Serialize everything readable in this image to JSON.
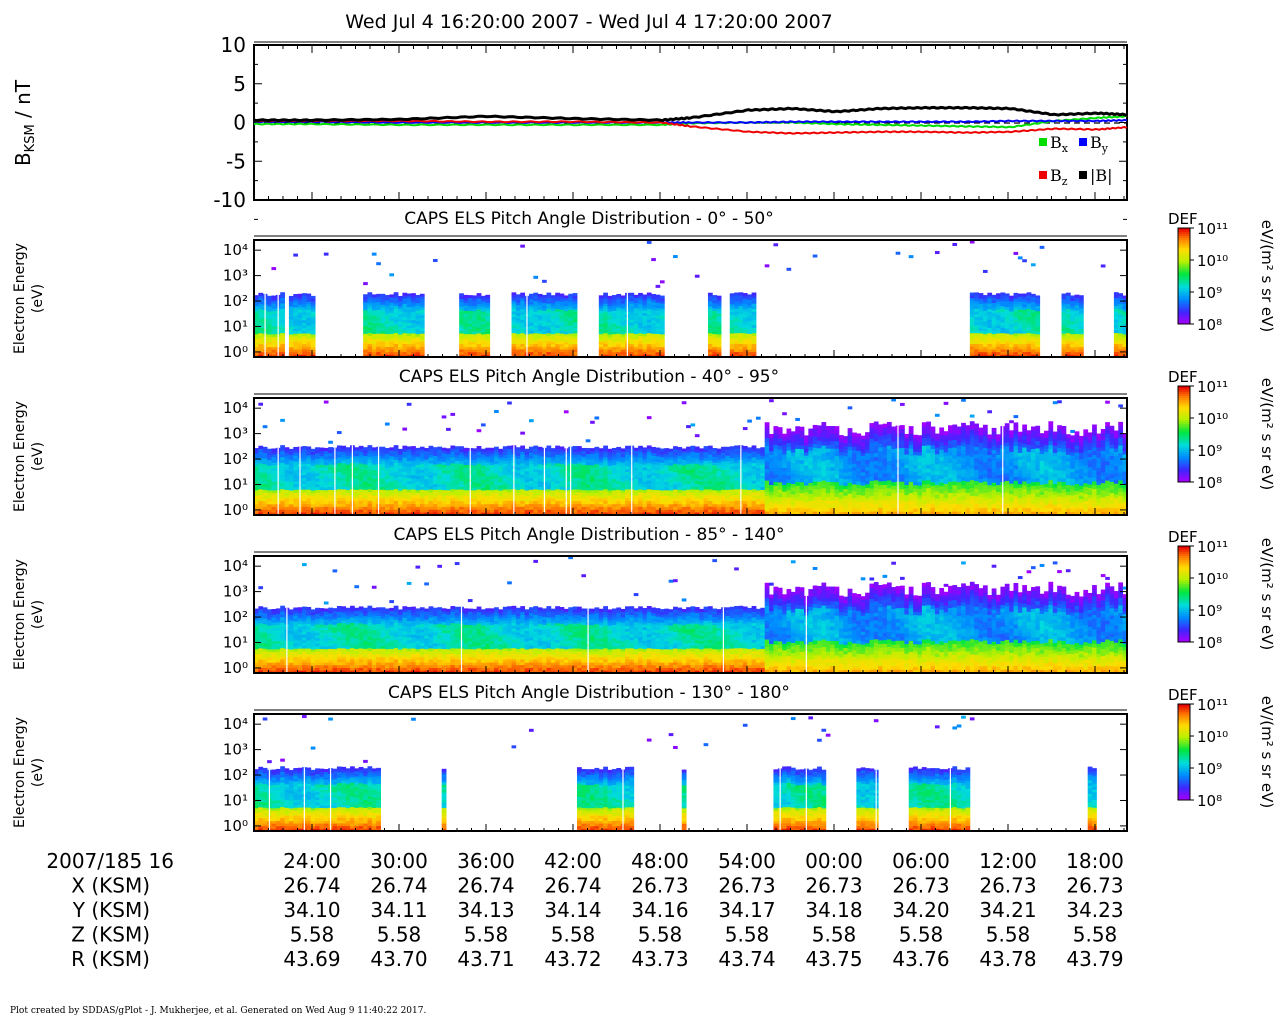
{
  "title": "Wed Jul 4 16:20:00 2007 - Wed Jul 4 17:20:00 2007",
  "footer": "Plot created by SDDAS/gPlot - J. Mukherjee, et al.  Generated on Wed Aug 9 11:40:22 2017.",
  "colors": {
    "bx": "#00dd00",
    "by": "#0000ff",
    "bz": "#ee0000",
    "btot": "#000000"
  },
  "mag_panel": {
    "ylabel_main": "B",
    "ylabel_sub": "KSM",
    "ylabel_unit": " / nT",
    "yticks": [
      "10",
      "5",
      "0",
      "-5",
      "-10"
    ],
    "legend": [
      {
        "label": "B",
        "sub": "x",
        "color": "#00dd00"
      },
      {
        "label": "B",
        "sub": "y",
        "color": "#0000ff"
      },
      {
        "label": "B",
        "sub": "z",
        "color": "#ee0000"
      },
      {
        "label": "|B|",
        "sub": "",
        "color": "#000000"
      }
    ]
  },
  "spec_panels": [
    {
      "title": "CAPS ELS Pitch Angle Distribution - 0° - 50°"
    },
    {
      "title": "CAPS ELS Pitch Angle Distribution - 40° - 95°"
    },
    {
      "title": "CAPS ELS Pitch Angle Distribution - 85° - 140°"
    },
    {
      "title": "CAPS ELS Pitch Angle Distribution - 130° - 180°"
    }
  ],
  "spec_ylabel": [
    "Electron Energy",
    "(eV)"
  ],
  "colorbar": {
    "label": "DEF",
    "unit": "eV/(m² s sr eV)",
    "ticks": [
      "10¹¹",
      "10¹⁰",
      "10⁹",
      "10⁸"
    ]
  },
  "energy_ticks": [
    "10⁴",
    "10³",
    "10²",
    "10¹",
    "10⁰"
  ],
  "ephemeris": {
    "start_label": "2007/185 16",
    "rows": [
      {
        "label": "X (KSM)",
        "values": [
          "26.74",
          "26.74",
          "26.74",
          "26.74",
          "26.73",
          "26.73",
          "26.73",
          "26.73",
          "26.73",
          "26.73"
        ]
      },
      {
        "label": "Y (KSM)",
        "values": [
          "34.10",
          "34.11",
          "34.13",
          "34.14",
          "34.16",
          "34.17",
          "34.18",
          "34.20",
          "34.21",
          "34.23"
        ]
      },
      {
        "label": "Z (KSM)",
        "values": [
          "5.58",
          "5.58",
          "5.58",
          "5.58",
          "5.58",
          "5.58",
          "5.58",
          "5.58",
          "5.58",
          "5.58"
        ]
      },
      {
        "label": "R (KSM)",
        "values": [
          "43.69",
          "43.70",
          "43.71",
          "43.72",
          "43.73",
          "43.74",
          "43.75",
          "43.76",
          "43.78",
          "43.79"
        ]
      }
    ]
  },
  "chart_data": {
    "type": "line",
    "title": "Wed Jul 4 16:20:00 2007 - Wed Jul 4 17:20:00 2007",
    "x_time_labels": [
      "24:00",
      "30:00",
      "36:00",
      "42:00",
      "48:00",
      "54:00",
      "00:00",
      "06:00",
      "12:00",
      "18:00"
    ],
    "ylabel": "BKSM / nT",
    "ylim": [
      -10,
      10
    ],
    "x": [
      "16:20",
      "16:24",
      "16:30",
      "16:36",
      "16:42",
      "16:48",
      "16:50",
      "16:54",
      "16:57",
      "17:00",
      "17:03",
      "17:06",
      "17:09",
      "17:12",
      "17:15",
      "17:18",
      "17:20"
    ],
    "series": [
      {
        "name": "Bx",
        "values": [
          -0.2,
          -0.2,
          -0.3,
          -0.3,
          -0.3,
          -0.3,
          -0.1,
          0.0,
          0.0,
          -0.2,
          -0.3,
          -0.4,
          -0.5,
          -0.6,
          0.2,
          0.6,
          0.8
        ]
      },
      {
        "name": "By",
        "values": [
          0.1,
          0.1,
          0.0,
          0.0,
          0.0,
          0.0,
          0.0,
          0.0,
          0.1,
          0.1,
          0.1,
          0.1,
          0.1,
          0.2,
          0.2,
          0.2,
          0.3
        ]
      },
      {
        "name": "Bz",
        "values": [
          0.2,
          0.2,
          0.2,
          0.1,
          0.1,
          0.0,
          -0.5,
          -1.2,
          -1.4,
          -1.3,
          -1.2,
          -1.2,
          -1.3,
          -1.2,
          -0.8,
          -0.9,
          -0.6
        ]
      },
      {
        "name": "|B|",
        "values": [
          0.3,
          0.3,
          0.4,
          0.8,
          0.5,
          0.3,
          0.6,
          1.6,
          1.8,
          1.4,
          1.8,
          1.9,
          1.9,
          1.8,
          1.0,
          1.2,
          1.0
        ]
      }
    ]
  }
}
